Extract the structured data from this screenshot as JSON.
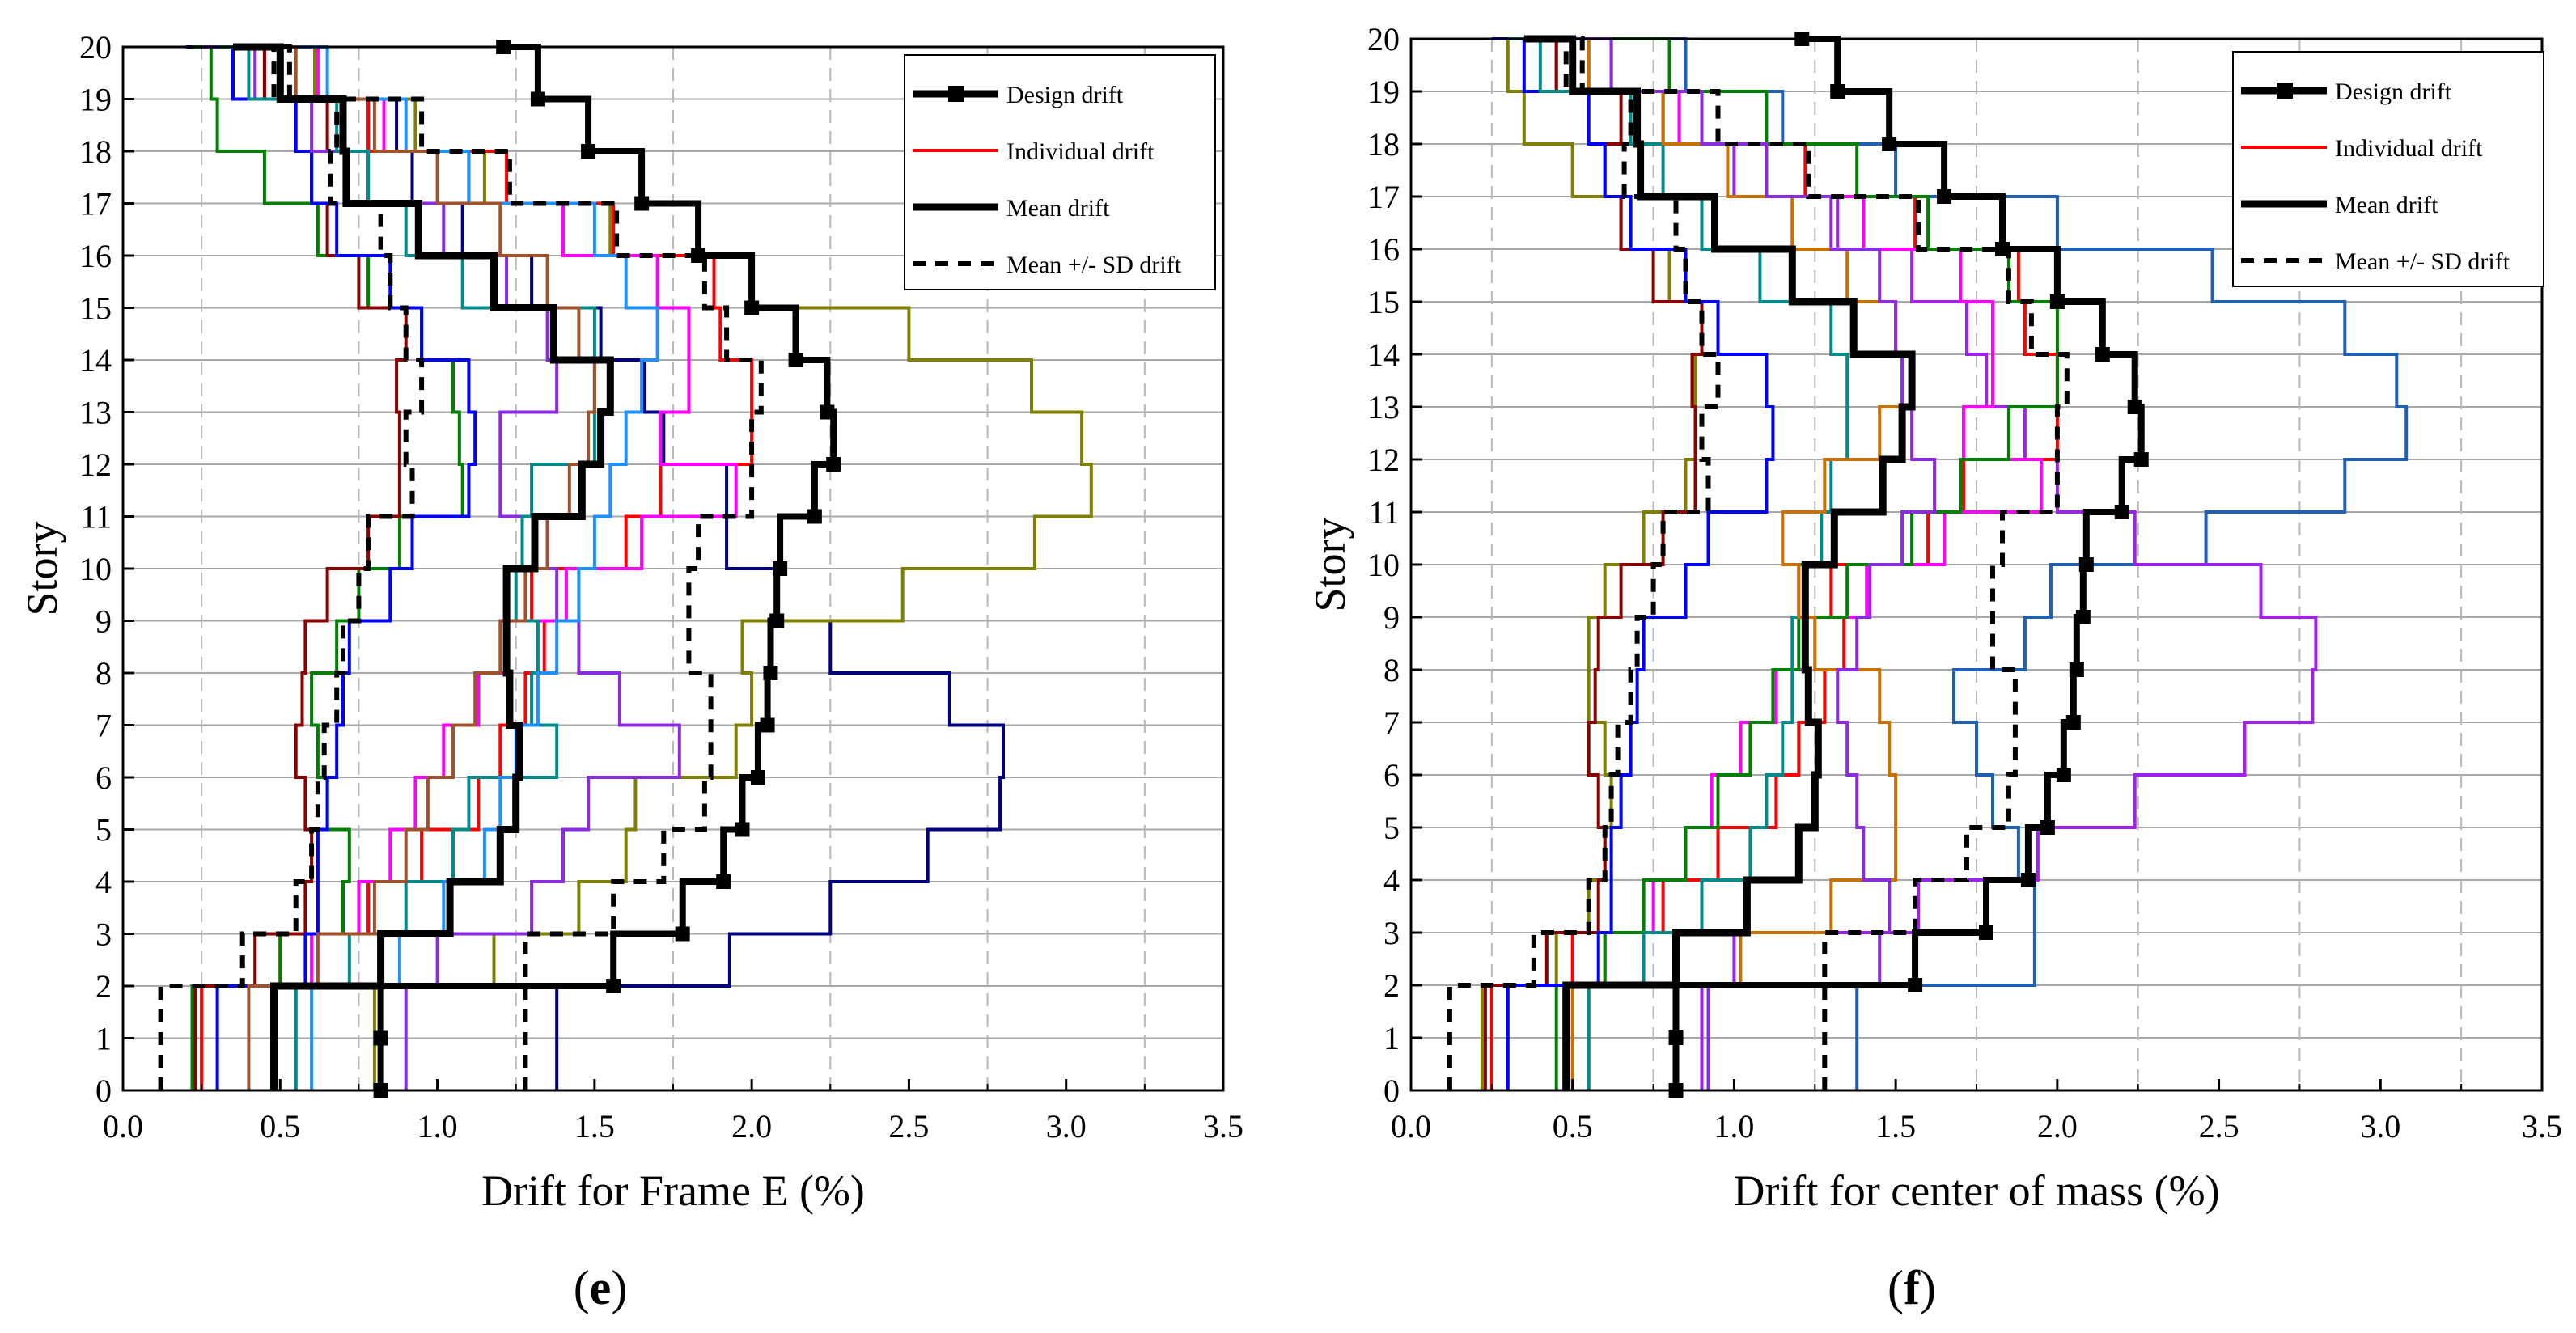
{
  "panels": [
    {
      "label_open": "(",
      "label_letter": "e",
      "label_close": ")",
      "chart_data": {
        "type": "line",
        "xlabel": "Drift for Frame E (%)",
        "ylabel": "Story",
        "xlim": [
          0,
          3.5
        ],
        "ylim": [
          0,
          20
        ],
        "x_ticks": [
          "0.0",
          "0.5",
          "1.0",
          "1.5",
          "2.0",
          "2.5",
          "3.0",
          "3.5"
        ],
        "y_ticks": [
          "0",
          "1",
          "2",
          "3",
          "4",
          "5",
          "6",
          "7",
          "8",
          "9",
          "10",
          "11",
          "12",
          "13",
          "14",
          "15",
          "16",
          "17",
          "18",
          "19",
          "20"
        ],
        "grid": true,
        "legend_position": "top-right",
        "legend": [
          "Design drift",
          "Individual drift",
          "Mean drift",
          "Mean +/- SD drift"
        ],
        "series": [
          {
            "name": "Design drift",
            "style": "design",
            "color": "#000000",
            "values": [
              0.82,
              0.82,
              1.56,
              1.78,
              1.91,
              1.97,
              2.02,
              2.05,
              2.06,
              2.08,
              2.09,
              2.2,
              2.26,
              2.24,
              2.14,
              2.0,
              1.83,
              1.65,
              1.48,
              1.32,
              1.21
            ]
          },
          {
            "name": "Mean drift",
            "style": "mean",
            "color": "#000000",
            "values": [
              0.48,
              0.48,
              0.82,
              1.04,
              1.2,
              1.25,
              1.26,
              1.23,
              1.22,
              1.22,
              1.31,
              1.46,
              1.52,
              1.55,
              1.37,
              1.18,
              0.94,
              0.71,
              0.7,
              0.5,
              0.35
            ]
          },
          {
            "name": "Mean +/- SD drift",
            "style": "sd",
            "color": "#000000",
            "values": [
              0.12,
              0.12,
              0.38,
              0.55,
              0.6,
              0.62,
              0.64,
              0.68,
              0.7,
              0.75,
              0.78,
              0.92,
              0.9,
              0.95,
              0.9,
              0.85,
              0.82,
              0.66,
              0.68,
              0.48,
              0.5
            ]
          },
          {
            "name": "Mean +/- SD drift",
            "style": "sd",
            "color": "#000000",
            "values": [
              1.28,
              1.28,
              1.28,
              1.56,
              1.72,
              1.85,
              1.87,
              1.87,
              1.8,
              1.8,
              1.83,
              2.0,
              2.0,
              2.03,
              1.92,
              1.85,
              1.57,
              1.23,
              0.95,
              0.53,
              0.5
            ]
          },
          {
            "name": "",
            "style": "ind",
            "color": "#000080",
            "values": [
              1.38,
              1.38,
              1.93,
              2.25,
              2.56,
              2.79,
              2.8,
              2.63,
              2.25,
              2.08,
              1.92,
              1.92,
              1.72,
              1.66,
              1.52,
              1.3,
              1.08,
              0.92,
              0.87,
              0.61,
              0.2
            ]
          },
          {
            "name": "",
            "style": "ind",
            "color": "#808000",
            "values": [
              0.8,
              0.8,
              1.18,
              1.45,
              1.6,
              1.63,
              1.95,
              2.0,
              1.97,
              2.48,
              2.9,
              3.08,
              3.05,
              2.89,
              2.5,
              2.0,
              1.55,
              1.15,
              0.93,
              0.61,
              0.25
            ]
          },
          {
            "name": "",
            "style": "ind",
            "color": "#ff0000",
            "values": [
              0.25,
              0.25,
              0.5,
              0.78,
              0.95,
              1.13,
              1.2,
              1.28,
              1.34,
              1.3,
              1.6,
              1.71,
              2.0,
              2.0,
              1.9,
              1.88,
              1.56,
              1.22,
              0.78,
              0.45,
              0.3
            ]
          },
          {
            "name": "",
            "style": "ind",
            "color": "#ff00ff",
            "values": [
              0.55,
              0.55,
              0.6,
              0.75,
              0.85,
              0.93,
              1.02,
              1.13,
              1.22,
              1.41,
              1.65,
              1.95,
              1.71,
              1.8,
              1.8,
              1.7,
              1.4,
              1.1,
              0.83,
              0.62,
              0.65
            ]
          },
          {
            "name": "",
            "style": "ind",
            "color": "#008000",
            "values": [
              0.22,
              0.22,
              0.5,
              0.7,
              0.72,
              0.65,
              0.62,
              0.6,
              0.68,
              0.75,
              0.88,
              1.08,
              1.07,
              1.05,
              0.95,
              0.78,
              0.62,
              0.45,
              0.3,
              0.28,
              0.22
            ]
          },
          {
            "name": "",
            "style": "ind",
            "color": "#8b0000",
            "values": [
              0.23,
              0.23,
              0.42,
              0.58,
              0.6,
              0.58,
              0.55,
              0.57,
              0.58,
              0.65,
              0.78,
              0.88,
              0.88,
              0.87,
              0.9,
              0.75,
              0.65,
              0.6,
              0.65,
              0.45,
              0.27
            ]
          },
          {
            "name": "",
            "style": "ind",
            "color": "#0000ff",
            "values": [
              0.3,
              0.3,
              0.58,
              0.62,
              0.62,
              0.65,
              0.68,
              0.7,
              0.72,
              0.85,
              0.92,
              1.1,
              1.12,
              1.1,
              0.95,
              0.85,
              0.68,
              0.6,
              0.55,
              0.35,
              0.25
            ]
          },
          {
            "name": "",
            "style": "ind",
            "color": "#8a2be2",
            "values": [
              0.9,
              0.9,
              1.0,
              1.3,
              1.4,
              1.48,
              1.77,
              1.58,
              1.45,
              1.38,
              1.35,
              1.2,
              1.2,
              1.38,
              1.35,
              1.22,
              1.02,
              0.78,
              0.6,
              0.42,
              0.25
            ]
          },
          {
            "name": "",
            "style": "ind",
            "color": "#008b8b",
            "values": [
              0.55,
              0.55,
              0.72,
              0.9,
              1.05,
              1.1,
              1.38,
              1.3,
              1.32,
              1.25,
              1.27,
              1.3,
              1.5,
              1.5,
              1.5,
              1.08,
              0.9,
              0.78,
              0.68,
              0.4,
              0.3
            ]
          },
          {
            "name": "",
            "style": "ind",
            "color": "#1e90ff",
            "values": [
              0.6,
              0.6,
              0.88,
              1.02,
              1.15,
              1.2,
              1.25,
              1.32,
              1.38,
              1.45,
              1.5,
              1.55,
              1.6,
              1.65,
              1.7,
              1.6,
              1.5,
              1.1,
              0.9,
              0.65,
              0.45
            ]
          },
          {
            "name": "",
            "style": "ind",
            "color": "#a0522d",
            "values": [
              0.4,
              0.4,
              0.62,
              0.8,
              0.9,
              0.97,
              1.05,
              1.12,
              1.2,
              1.28,
              1.35,
              1.42,
              1.48,
              1.5,
              1.45,
              1.35,
              1.2,
              1.0,
              0.8,
              0.55,
              0.38
            ]
          }
        ]
      }
    },
    {
      "label_open": "(",
      "label_letter": "f",
      "label_close": ")",
      "chart_data": {
        "type": "line",
        "xlabel": "Drift for center of mass (%)",
        "ylabel": "Story",
        "xlim": [
          0,
          3.5
        ],
        "ylim": [
          0,
          20
        ],
        "x_ticks": [
          "0.0",
          "0.5",
          "1.0",
          "1.5",
          "2.0",
          "2.5",
          "3.0",
          "3.5"
        ],
        "y_ticks": [
          "0",
          "1",
          "2",
          "3",
          "4",
          "5",
          "6",
          "7",
          "8",
          "9",
          "10",
          "11",
          "12",
          "13",
          "14",
          "15",
          "16",
          "17",
          "18",
          "19",
          "20"
        ],
        "grid": true,
        "legend_position": "top-right",
        "legend": [
          "Design drift",
          "Individual drift",
          "Mean drift",
          "Mean +/- SD drift"
        ],
        "series": [
          {
            "name": "Design drift",
            "style": "design",
            "color": "#000000",
            "values": [
              0.82,
              0.82,
              1.56,
              1.78,
              1.91,
              1.97,
              2.02,
              2.05,
              2.06,
              2.08,
              2.09,
              2.2,
              2.26,
              2.24,
              2.14,
              2.0,
              1.83,
              1.65,
              1.48,
              1.32,
              1.21
            ]
          },
          {
            "name": "Mean drift",
            "style": "mean",
            "color": "#000000",
            "values": [
              0.48,
              0.48,
              0.82,
              1.04,
              1.2,
              1.25,
              1.26,
              1.23,
              1.22,
              1.22,
              1.31,
              1.46,
              1.52,
              1.55,
              1.37,
              1.18,
              0.94,
              0.71,
              0.7,
              0.5,
              0.35
            ]
          },
          {
            "name": "Mean +/- SD drift",
            "style": "sd",
            "color": "#000000",
            "values": [
              0.12,
              0.12,
              0.38,
              0.55,
              0.6,
              0.62,
              0.64,
              0.68,
              0.7,
              0.75,
              0.78,
              0.92,
              0.9,
              0.95,
              0.9,
              0.85,
              0.82,
              0.66,
              0.68,
              0.48,
              0.5
            ]
          },
          {
            "name": "Mean +/- SD drift",
            "style": "sd",
            "color": "#000000",
            "values": [
              1.28,
              1.28,
              1.28,
              1.56,
              1.72,
              1.85,
              1.87,
              1.87,
              1.8,
              1.8,
              1.83,
              2.0,
              2.0,
              2.03,
              1.92,
              1.85,
              1.57,
              1.23,
              0.95,
              0.53,
              0.5
            ]
          },
          {
            "name": "",
            "style": "ind",
            "color": "#1f5fb4",
            "values": [
              1.38,
              1.38,
              1.93,
              1.93,
              1.88,
              1.8,
              1.75,
              1.68,
              1.9,
              1.98,
              2.46,
              2.89,
              3.08,
              3.05,
              2.89,
              2.48,
              2.0,
              1.5,
              1.15,
              0.85,
              0.6
            ]
          },
          {
            "name": "",
            "style": "ind",
            "color": "#a020f0",
            "values": [
              0.9,
              0.9,
              1.0,
              1.57,
              1.94,
              2.24,
              2.58,
              2.79,
              2.8,
              2.63,
              2.24,
              2.0,
              1.9,
              1.78,
              1.72,
              1.55,
              1.32,
              1.0,
              0.78,
              0.55,
              0.3
            ]
          },
          {
            "name": "",
            "style": "ind",
            "color": "#808000",
            "values": [
              0.22,
              0.22,
              0.45,
              0.55,
              0.6,
              0.62,
              0.6,
              0.55,
              0.55,
              0.6,
              0.72,
              0.85,
              0.88,
              0.88,
              0.9,
              0.8,
              0.65,
              0.5,
              0.35,
              0.3,
              0.25
            ]
          },
          {
            "name": "",
            "style": "ind",
            "color": "#ff0000",
            "values": [
              0.25,
              0.25,
              0.5,
              0.78,
              0.95,
              1.13,
              1.2,
              1.28,
              1.34,
              1.3,
              1.6,
              1.71,
              2.0,
              2.0,
              1.9,
              1.88,
              1.56,
              1.22,
              0.78,
              0.45,
              0.3
            ]
          },
          {
            "name": "",
            "style": "ind",
            "color": "#ff00ff",
            "values": [
              0.55,
              0.55,
              0.6,
              0.75,
              0.85,
              0.93,
              1.02,
              1.13,
              1.22,
              1.41,
              1.65,
              1.95,
              1.71,
              1.8,
              1.8,
              1.7,
              1.4,
              1.1,
              0.83,
              0.62,
              0.65
            ]
          },
          {
            "name": "",
            "style": "ind",
            "color": "#008000",
            "values": [
              0.45,
              0.45,
              0.6,
              0.72,
              0.85,
              0.95,
              1.05,
              1.12,
              1.2,
              1.35,
              1.55,
              1.7,
              1.85,
              2.0,
              2.0,
              1.85,
              1.6,
              1.38,
              1.1,
              0.8,
              0.5
            ]
          },
          {
            "name": "",
            "style": "ind",
            "color": "#8b0000",
            "values": [
              0.23,
              0.23,
              0.42,
              0.58,
              0.6,
              0.58,
              0.55,
              0.57,
              0.58,
              0.65,
              0.78,
              0.88,
              0.88,
              0.87,
              0.9,
              0.75,
              0.65,
              0.6,
              0.65,
              0.45,
              0.27
            ]
          },
          {
            "name": "",
            "style": "ind",
            "color": "#0000ff",
            "values": [
              0.3,
              0.3,
              0.58,
              0.62,
              0.62,
              0.65,
              0.68,
              0.7,
              0.72,
              0.85,
              0.92,
              1.1,
              1.12,
              1.1,
              0.95,
              0.85,
              0.68,
              0.6,
              0.55,
              0.35,
              0.25
            ]
          },
          {
            "name": "",
            "style": "ind",
            "color": "#008b8b",
            "values": [
              0.55,
              0.55,
              0.72,
              0.9,
              1.05,
              1.1,
              1.15,
              1.18,
              1.18,
              1.2,
              1.27,
              1.3,
              1.35,
              1.35,
              1.3,
              1.08,
              0.9,
              0.78,
              0.68,
              0.4,
              0.3
            ]
          },
          {
            "name": "",
            "style": "ind",
            "color": "#c87000",
            "values": [
              0.5,
              0.5,
              1.02,
              1.3,
              1.5,
              1.5,
              1.48,
              1.45,
              1.25,
              1.2,
              1.15,
              1.28,
              1.45,
              1.55,
              1.5,
              1.35,
              1.18,
              0.98,
              0.78,
              0.55,
              0.38
            ]
          },
          {
            "name": "",
            "style": "ind",
            "color": "#8a2be2",
            "values": [
              0.92,
              0.92,
              1.45,
              1.48,
              1.4,
              1.38,
              1.35,
              1.32,
              1.38,
              1.42,
              1.52,
              1.62,
              1.55,
              1.52,
              1.5,
              1.45,
              1.3,
              1.1,
              0.9,
              0.62,
              0.4
            ]
          }
        ]
      }
    }
  ]
}
